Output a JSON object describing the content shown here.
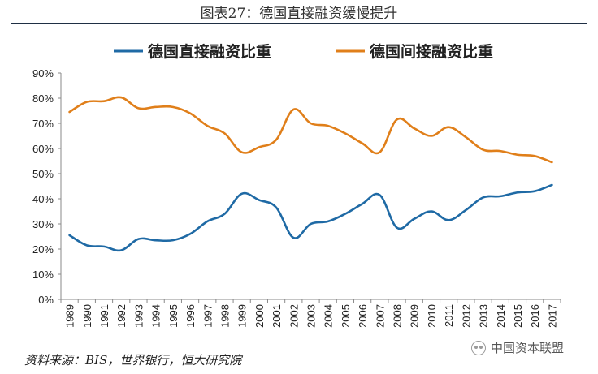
{
  "figure_title": "图表27：德国直接融资缓慢提升",
  "source_note": "资料来源：BIS，世界银行，恒大研究院",
  "watermark": {
    "text": "中国资本联盟",
    "icon": "wechat-icon"
  },
  "chart_data": {
    "type": "line",
    "title": "",
    "xlabel": "",
    "ylabel": "",
    "legend_position": "top",
    "grid": false,
    "ylim": [
      0,
      90
    ],
    "y_ticks": [
      "0%",
      "10%",
      "20%",
      "30%",
      "40%",
      "50%",
      "60%",
      "70%",
      "80%",
      "90%"
    ],
    "categories": [
      "1989",
      "1990",
      "1991",
      "1992",
      "1993",
      "1994",
      "1995",
      "1996",
      "1997",
      "1998",
      "1999",
      "2000",
      "2001",
      "2002",
      "2003",
      "2004",
      "2005",
      "2006",
      "2007",
      "2008",
      "2009",
      "2010",
      "2011",
      "2012",
      "2013",
      "2014",
      "2015",
      "2016",
      "2017"
    ],
    "series": [
      {
        "name": "德国直接融资比重",
        "color": "#1f6aa5",
        "values": [
          25.5,
          21.5,
          21.0,
          19.5,
          24.0,
          23.5,
          23.5,
          26.0,
          31.0,
          34.0,
          42.0,
          39.5,
          36.5,
          24.5,
          30.0,
          31.0,
          34.0,
          38.0,
          41.5,
          28.5,
          32.0,
          35.0,
          31.5,
          35.5,
          40.5,
          41.0,
          42.5,
          43.0,
          45.5
        ]
      },
      {
        "name": "德国间接融资比重",
        "color": "#e07f1a",
        "values": [
          74.5,
          78.5,
          78.8,
          80.3,
          76.0,
          76.5,
          76.5,
          74.0,
          69.0,
          66.0,
          58.5,
          60.5,
          63.5,
          75.5,
          70.0,
          69.0,
          66.0,
          62.0,
          58.5,
          71.5,
          68.0,
          65.0,
          68.5,
          64.5,
          59.5,
          59.0,
          57.5,
          57.0,
          54.5
        ]
      }
    ]
  }
}
